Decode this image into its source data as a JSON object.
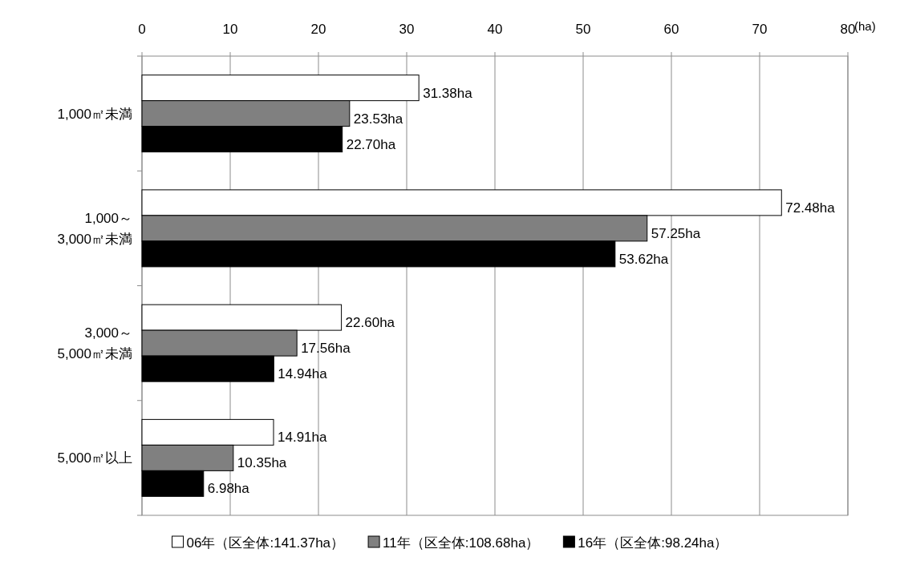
{
  "chart_data": {
    "type": "bar",
    "orientation": "horizontal",
    "xlabel": "(ha)",
    "categories": [
      "1,000㎡未満",
      "1,000～\n3,000㎡未満",
      "3,000～\n5,000㎡未満",
      "5,000㎡以上"
    ],
    "series": [
      {
        "name": "06年（区全体:141.37ha）",
        "color": "#ffffff",
        "values": [
          31.38,
          72.48,
          22.6,
          14.91
        ],
        "value_labels": [
          "31.38ha",
          "72.48ha",
          "22.60ha",
          "14.91ha"
        ]
      },
      {
        "name": "11年（区全体:108.68ha）",
        "color": "#808080",
        "values": [
          23.53,
          57.25,
          17.56,
          10.35
        ],
        "value_labels": [
          "23.53ha",
          "57.25ha",
          "17.56ha",
          "10.35ha"
        ]
      },
      {
        "name": "16年（区全体:98.24ha）",
        "color": "#000000",
        "values": [
          22.7,
          53.62,
          14.94,
          6.98
        ],
        "value_labels": [
          "22.70ha",
          "53.62ha",
          "14.94ha",
          "6.98ha"
        ]
      }
    ],
    "xlim": [
      0,
      80
    ],
    "xticks": [
      0,
      10,
      20,
      30,
      40,
      50,
      60,
      70,
      80
    ],
    "grid": "x",
    "legend": "bottom"
  }
}
